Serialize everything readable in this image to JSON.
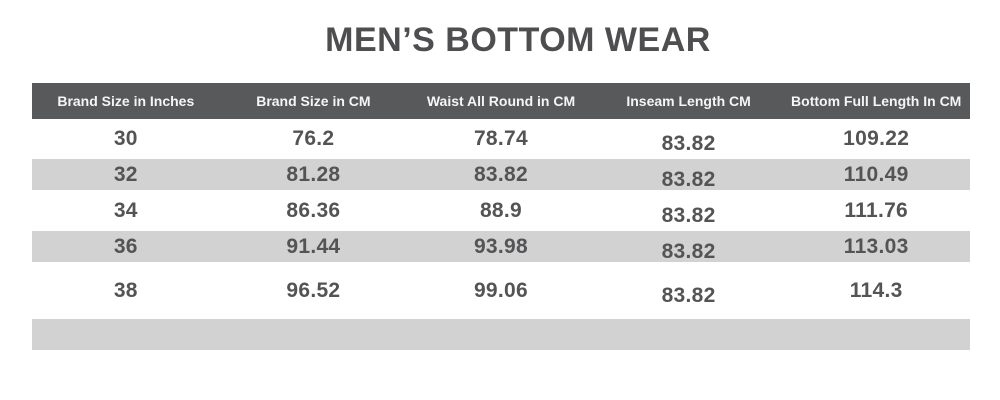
{
  "title": "MEN’S BOTTOM WEAR",
  "table": {
    "columns": [
      "Brand Size in Inches",
      "Brand Size in CM",
      "Waist All Round in CM",
      "Inseam Length CM",
      "Bottom Full Length In CM"
    ],
    "rows": [
      [
        "30",
        "76.2",
        "78.74",
        "83.82",
        "109.22"
      ],
      [
        "32",
        "81.28",
        "83.82",
        "83.82",
        "110.49"
      ],
      [
        "34",
        "86.36",
        "88.9",
        "83.82",
        "111.76"
      ],
      [
        "36",
        "91.44",
        "93.98",
        "83.82",
        "113.03"
      ],
      [
        "38",
        "96.52",
        "99.06",
        "83.82",
        "114.3"
      ]
    ]
  },
  "colors": {
    "header_bg": "#58595b",
    "header_text": "#f5f5f5",
    "stripe_bg": "#d2d2d2",
    "cell_text": "#545456",
    "title_text": "#4e4e50",
    "page_bg": "#ffffff"
  }
}
